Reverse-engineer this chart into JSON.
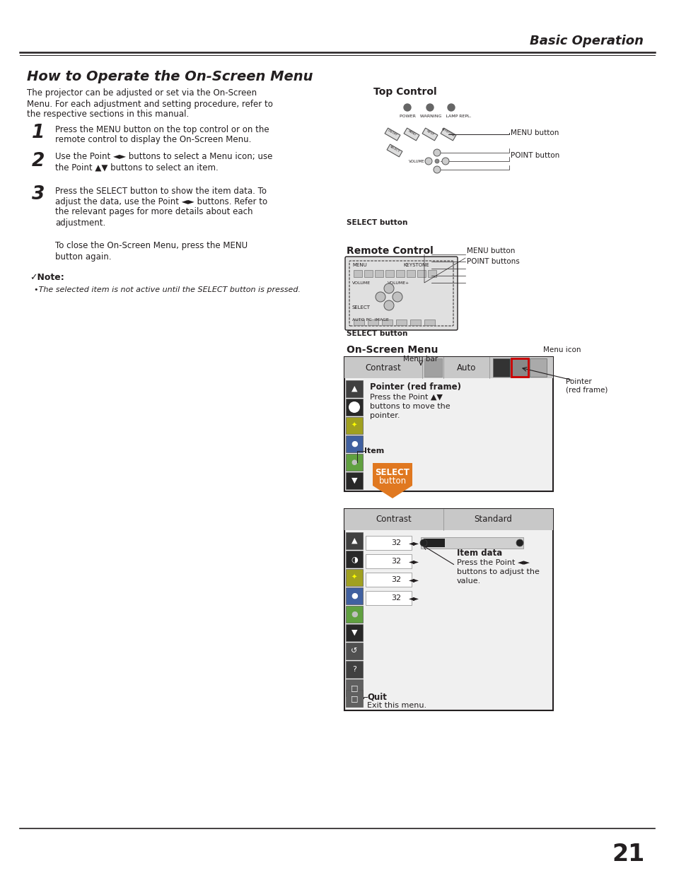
{
  "title_header": "Basic Operation",
  "section_title": "How to Operate the On-Screen Menu",
  "intro_lines": [
    "The projector can be adjusted or set via the On-Screen",
    "Menu. For each adjustment and setting procedure, refer to",
    "the respective sections in this manual."
  ],
  "step1_num": "1",
  "step1_lines": [
    "Press the MENU button on the top control or on the",
    "remote control to display the On-Screen Menu."
  ],
  "step2_num": "2",
  "step2_lines": [
    "Use the Point ◄► buttons to select a Menu icon; use",
    "the Point ▲▼ buttons to select an item."
  ],
  "step3_num": "3",
  "step3_lines": [
    "Press the SELECT button to show the item data. To",
    "adjust the data, use the Point ◄► buttons. Refer to",
    "the relevant pages for more details about each",
    "adjustment."
  ],
  "close_lines": [
    "To close the On-Screen Menu, press the MENU",
    "button again."
  ],
  "note_header": "✓Note:",
  "note_text": "•The selected item is not active until the SELECT button is pressed.",
  "top_control_label": "Top Control",
  "menu_button_label": "MENU button",
  "point_button_label": "POINT button",
  "select_button_label": "SELECT button",
  "remote_control_label": "Remote Control",
  "remote_menu_label": "MENU button",
  "remote_point_label": "POINT buttons",
  "remote_select_label": "SELECT button",
  "onscreen_menu_label": "On-Screen Menu",
  "menu_icon_label": "Menu icon",
  "menu_bar_label": "Menu bar",
  "pointer_label": "Pointer\n(red frame)",
  "pointer_red_label": "Pointer (red frame)",
  "pointer_desc": [
    "Press the Point ▲▼",
    "buttons to move the",
    "pointer."
  ],
  "item_label": "Item",
  "select_button_box": "SELECT\nbutton",
  "item_data_label": "Item data",
  "item_data_desc": [
    "Press the Point ◄►",
    "buttons to adjust the",
    "value."
  ],
  "quit_label": "Quit",
  "quit_desc": "Exit this menu.",
  "page_number": "21",
  "bg_color": "#ffffff",
  "text_color": "#231f20",
  "red_color": "#cc0000",
  "orange_color": "#e07820",
  "dark_color": "#333333",
  "gray_color": "#808080",
  "light_gray": "#d0d0d0",
  "mid_gray": "#aaaaaa",
  "menu_bg": "#e8e8e8",
  "dark_gray": "#555555"
}
